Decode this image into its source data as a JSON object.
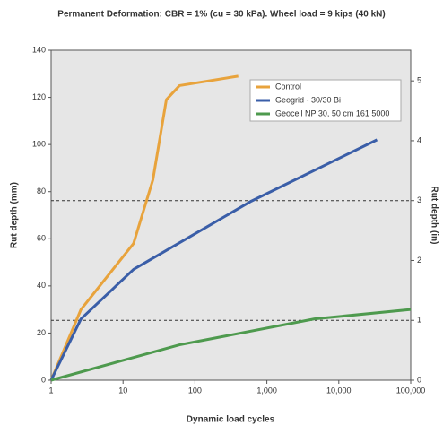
{
  "chart_data": {
    "type": "line",
    "title": "Permanent Deformation: CBR = 1% (cu = 30 kPa). Wheel load = 9 kips (40 kN)",
    "x_label": "Dynamic load cycles",
    "y_label": "Rut depth (mm)",
    "y2_label": "Rut depth (in)",
    "x_log": true,
    "xlim": [
      1,
      100000
    ],
    "xticks": [
      1,
      10,
      100,
      {
        "value": 1000,
        "label": "1,000"
      },
      {
        "value": 10000,
        "label": "10,000"
      },
      {
        "value": 100000,
        "label": "100,000"
      }
    ],
    "ylim": [
      0,
      140
    ],
    "yticks": [
      0,
      20,
      40,
      60,
      80,
      100,
      120,
      140
    ],
    "y2lim": [
      0,
      5.5118
    ],
    "y2ticks": [
      0,
      1,
      2,
      3,
      4,
      5
    ],
    "reference_lines": [
      25.4,
      76.2
    ],
    "legend": "upper right",
    "series": [
      {
        "name": "Control",
        "color": "#e8a33c",
        "x": [
          1,
          2.6,
          14,
          26,
          40,
          61,
          400
        ],
        "values": [
          0,
          30,
          58,
          85,
          119,
          125,
          129
        ]
      },
      {
        "name": "Geogrid - 30/30 Bi",
        "color": "#3a5ea8",
        "x": [
          1,
          2.6,
          14,
          610,
          34000
        ],
        "values": [
          0,
          26,
          47,
          76,
          102
        ]
      },
      {
        "name": "Geocell NP 30, 50 cm 161 5000",
        "color": "#4e9a4e",
        "x": [
          1,
          61,
          4600,
          100000
        ],
        "values": [
          0,
          15,
          26,
          30
        ]
      }
    ]
  }
}
